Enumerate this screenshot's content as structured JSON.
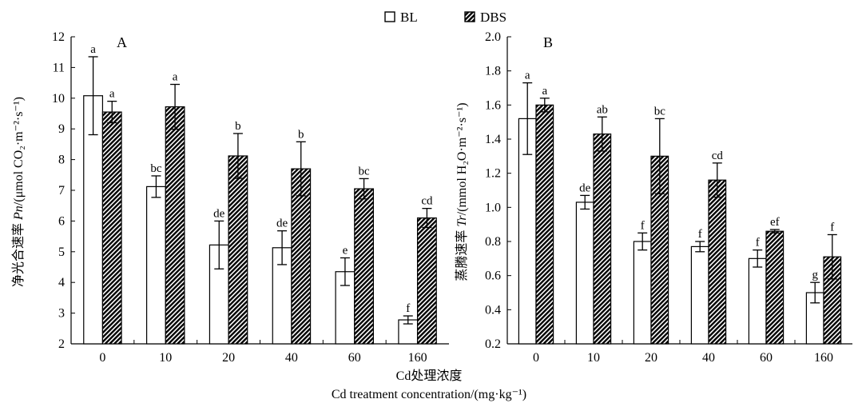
{
  "legend": [
    {
      "name": "BL",
      "fill": "white"
    },
    {
      "name": "DBS",
      "fill": "hatch"
    }
  ],
  "x_title_cn": "Cd处理浓度",
  "x_title_en": "Cd treatment concentration/(mg·kg⁻¹)",
  "chart_data": [
    {
      "type": "bar",
      "panel": "A",
      "ylabel_cn": "净光合速率",
      "ylabel_sym": "Pn",
      "ylabel_unit": "/(μmol CO₂·m⁻²·s⁻¹)",
      "categories": [
        "0",
        "10",
        "20",
        "40",
        "60",
        "160"
      ],
      "ylim": [
        2,
        12
      ],
      "yticks": [
        2,
        3,
        4,
        5,
        6,
        7,
        8,
        9,
        10,
        11,
        12
      ],
      "series": [
        {
          "name": "BL",
          "values": [
            10.08,
            7.12,
            5.22,
            5.13,
            4.35,
            2.78
          ],
          "errors": [
            1.27,
            0.35,
            0.78,
            0.55,
            0.45,
            0.13
          ],
          "labels": [
            "a",
            "bc",
            "de",
            "de",
            "e",
            "f"
          ]
        },
        {
          "name": "DBS",
          "values": [
            9.55,
            9.72,
            8.12,
            7.7,
            7.05,
            6.1
          ],
          "errors": [
            0.35,
            0.73,
            0.73,
            0.88,
            0.33,
            0.31
          ],
          "labels": [
            "a",
            "a",
            "b",
            "b",
            "bc",
            "cd"
          ]
        }
      ]
    },
    {
      "type": "bar",
      "panel": "B",
      "ylabel_cn": "蒸腾速率",
      "ylabel_sym": "Tr",
      "ylabel_unit": "/(mmol H₂O·m⁻²·s⁻¹)",
      "categories": [
        "0",
        "10",
        "20",
        "40",
        "60",
        "160"
      ],
      "ylim": [
        0.2,
        2.0
      ],
      "yticks": [
        "0.2",
        "0.4",
        "0.6",
        "0.8",
        "1.0",
        "1.2",
        "1.4",
        "1.6",
        "1.8",
        "2.0"
      ],
      "series": [
        {
          "name": "BL",
          "values": [
            1.52,
            1.03,
            0.8,
            0.77,
            0.7,
            0.5
          ],
          "errors": [
            0.21,
            0.04,
            0.05,
            0.03,
            0.05,
            0.06
          ],
          "labels": [
            "a",
            "de",
            "f",
            "f",
            "f",
            "g"
          ]
        },
        {
          "name": "DBS",
          "values": [
            1.6,
            1.43,
            1.3,
            1.16,
            0.86,
            0.71
          ],
          "errors": [
            0.04,
            0.1,
            0.22,
            0.1,
            0.01,
            0.13
          ],
          "labels": [
            "a",
            "ab",
            "bc",
            "cd",
            "ef",
            "f"
          ]
        }
      ]
    }
  ]
}
